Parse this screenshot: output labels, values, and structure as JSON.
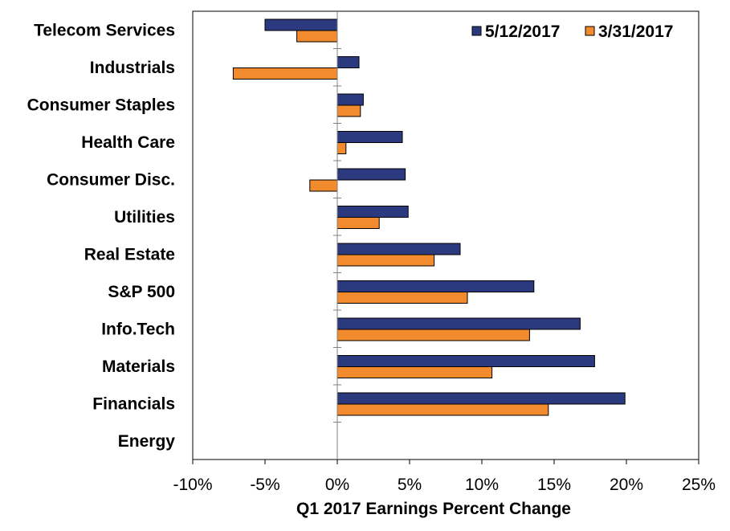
{
  "chart_data": {
    "type": "bar",
    "orientation": "horizontal",
    "categories": [
      "Telecom Services",
      "Industrials",
      "Consumer Staples",
      "Health Care",
      "Consumer Disc.",
      "Utilities",
      "Real Estate",
      "S&P 500",
      "Info.Tech",
      "Materials",
      "Financials",
      "Energy"
    ],
    "series": [
      {
        "name": "5/12/2017",
        "color": "#2B3A7E",
        "values": [
          -5.0,
          1.5,
          1.8,
          4.5,
          4.7,
          4.9,
          8.5,
          13.6,
          16.8,
          17.8,
          19.9,
          null
        ]
      },
      {
        "name": "3/31/2017",
        "color": "#F28A2E",
        "values": [
          -2.8,
          -7.2,
          1.6,
          0.6,
          -1.9,
          2.9,
          6.7,
          9.0,
          13.3,
          10.7,
          14.6,
          null
        ]
      }
    ],
    "xlabel": "Q1 2017 Earnings Percent Change",
    "ylabel": "",
    "xlim": [
      -10,
      25
    ],
    "xticks": [
      -10,
      -5,
      0,
      5,
      10,
      15,
      20,
      25
    ],
    "tick_labels": [
      "-10%",
      "-5%",
      "0%",
      "5%",
      "10%",
      "15%",
      "20%",
      "25%"
    ],
    "grid": false,
    "legend_position": "top-right"
  }
}
